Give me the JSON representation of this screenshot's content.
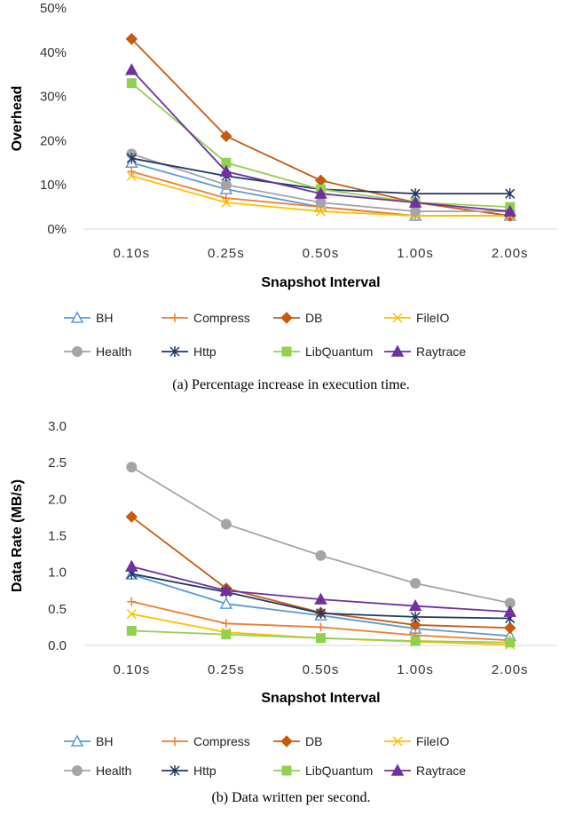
{
  "chart_data": [
    {
      "type": "line",
      "caption": "(a)  Percentage increase in execution time.",
      "xlabel": "Snapshot Interval",
      "ylabel": "Overhead",
      "categories": [
        "0.10s",
        "0.25s",
        "0.50s",
        "1.00s",
        "2.00s"
      ],
      "yticks": [
        "0%",
        "10%",
        "20%",
        "30%",
        "40%",
        "50%"
      ],
      "ylim": [
        0,
        50
      ],
      "grid": false,
      "legend_position": "bottom",
      "series": [
        {
          "name": "BH",
          "color": "#5b9bd5",
          "marker": "triangle-open",
          "values": [
            15,
            9,
            5,
            3,
            3
          ]
        },
        {
          "name": "Compress",
          "color": "#ed7d31",
          "marker": "plus",
          "values": [
            13,
            7,
            5,
            3,
            3
          ]
        },
        {
          "name": "DB",
          "color": "#c55a11",
          "marker": "diamond",
          "values": [
            43,
            21,
            11,
            6,
            3
          ]
        },
        {
          "name": "FileIO",
          "color": "#ffc000",
          "marker": "x",
          "values": [
            12,
            6,
            4,
            3,
            3
          ]
        },
        {
          "name": "Health",
          "color": "#a5a5a5",
          "marker": "circle",
          "values": [
            17,
            10,
            6,
            4,
            4
          ]
        },
        {
          "name": "Http",
          "color": "#1f3864",
          "marker": "asterisk",
          "values": [
            16,
            12,
            9,
            8,
            8
          ]
        },
        {
          "name": "LibQuantum",
          "color": "#92d050",
          "marker": "square",
          "values": [
            33,
            15,
            9,
            6,
            5
          ]
        },
        {
          "name": "Raytrace",
          "color": "#7030a0",
          "marker": "triangle",
          "values": [
            36,
            13,
            8,
            6,
            4
          ]
        }
      ]
    },
    {
      "type": "line",
      "caption": "(b)  Data written per second.",
      "xlabel": "Snapshot Interval",
      "ylabel": "Data Rate (MB/s)",
      "categories": [
        "0.10s",
        "0.25s",
        "0.50s",
        "1.00s",
        "2.00s"
      ],
      "yticks": [
        "0.0",
        "0.5",
        "1.0",
        "1.5",
        "2.0",
        "2.5",
        "3.0"
      ],
      "ylim": [
        0,
        3.0
      ],
      "grid": false,
      "legend_position": "bottom",
      "series": [
        {
          "name": "BH",
          "color": "#5b9bd5",
          "marker": "triangle-open",
          "values": [
            0.97,
            0.57,
            0.41,
            0.23,
            0.13
          ]
        },
        {
          "name": "Compress",
          "color": "#ed7d31",
          "marker": "plus",
          "values": [
            0.6,
            0.3,
            0.25,
            0.14,
            0.07
          ]
        },
        {
          "name": "DB",
          "color": "#c55a11",
          "marker": "diamond",
          "values": [
            1.76,
            0.78,
            0.45,
            0.28,
            0.24
          ]
        },
        {
          "name": "FileIO",
          "color": "#ffc000",
          "marker": "x",
          "values": [
            0.43,
            0.18,
            0.1,
            0.05,
            0.01
          ]
        },
        {
          "name": "Health",
          "color": "#a5a5a5",
          "marker": "circle",
          "values": [
            2.44,
            1.66,
            1.23,
            0.85,
            0.58
          ]
        },
        {
          "name": "Http",
          "color": "#1f3864",
          "marker": "asterisk",
          "values": [
            0.98,
            0.73,
            0.44,
            0.39,
            0.37
          ]
        },
        {
          "name": "LibQuantum",
          "color": "#92d050",
          "marker": "square",
          "values": [
            0.2,
            0.15,
            0.1,
            0.06,
            0.04
          ]
        },
        {
          "name": "Raytrace",
          "color": "#7030a0",
          "marker": "triangle",
          "values": [
            1.08,
            0.75,
            0.63,
            0.54,
            0.46
          ]
        }
      ]
    }
  ]
}
